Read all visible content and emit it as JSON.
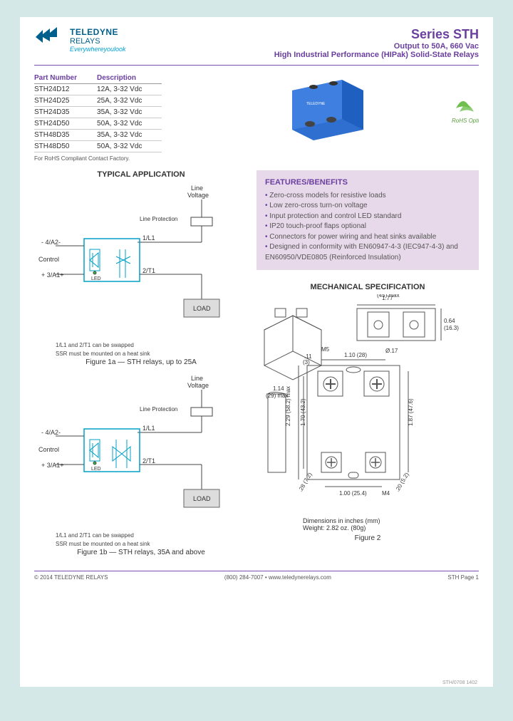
{
  "brand": {
    "name": "TELEDYNE",
    "sub": "RELAYS",
    "tagline": "Everywhereyoulook",
    "logo_color": "#005f8b"
  },
  "title": {
    "series": "Series STH",
    "line2": "Output to 50A, 660 Vac",
    "line3": "High Industrial Performance (HIPak) Solid-State Relays",
    "color": "#6a3fa0"
  },
  "part_table": {
    "headers": [
      "Part Number",
      "Description"
    ],
    "rows": [
      [
        "STH24D12",
        "12A, 3-32 Vdc"
      ],
      [
        "STH24D25",
        "25A, 3-32 Vdc"
      ],
      [
        "STH24D35",
        "35A, 3-32 Vdc"
      ],
      [
        "STH24D50",
        "50A, 3-32 Vdc"
      ],
      [
        "STH48D35",
        "35A, 3-32 Vdc"
      ],
      [
        "STH48D50",
        "50A, 3-32 Vdc"
      ]
    ],
    "footnote": "For RoHS Compliant Contact Factory."
  },
  "rohs_label": "RoHS Option",
  "product_image": {
    "body_color": "#2f6fd0",
    "screw_color": "#555",
    "label_text": "TELEDYNE"
  },
  "typical_app": {
    "heading": "TYPICAL APPLICATION",
    "circuit_a": {
      "caption": "Figure 1a — STH relays, up to 25A",
      "note1": "1/L1 and 2/T1 can be swapped",
      "note2": "SSR must be mounted on a heat sink",
      "labels": {
        "ctrl_minus": "- 4/A2-",
        "ctrl_plus": "+ 3/A1+",
        "ctrl": "Control",
        "l1": "1/L1",
        "t1": "2/T1",
        "line_v": "Line\nVoltage",
        "line_prot": "Line Protection",
        "load": "LOAD",
        "led": "LED"
      }
    },
    "circuit_b": {
      "caption": "Figure 1b — STH relays, 35A and above",
      "note1": "1/L1 and 2/T1 can be swapped",
      "note2": "SSR must be mounted on a heat sink"
    },
    "line_color": "#00a0c8",
    "load_color": "#666"
  },
  "features": {
    "title": "FEATURES/BENEFITS",
    "items": [
      "Zero-cross models for resistive loads",
      "Low zero-cross turn-on voltage",
      "Input protection and control LED standard",
      "IP20 touch-proof flaps optional",
      "Connectors for power wiring and heat sinks available",
      "Designed in conformity with EN60947-4-3 (IEC947-4-3) and EN60950/VDE0805 (Reinforced Insulation)"
    ],
    "bg": "#e8d9ea"
  },
  "mechanical": {
    "heading": "MECHANICAL SPECIFICATION",
    "dims": {
      "width": "1.77\n(45) max",
      "depth": "1.14\n(29) max",
      "height": "2.29 (58.2) max",
      "h2": "1.70 (43.2)",
      "h3": "1.87 (47.6)",
      "w2": "1.10 (28)",
      "w3": "1.00 (25.4)",
      "d1": ".11\n(3)",
      "d2": "0.64\n(16.3)",
      "d3": ".28 (7.2)",
      "d4": ".20 (5.2)",
      "m5": "M5",
      "m4": "M4",
      "o17": "Ø.17"
    },
    "note1": "Dimensions in inches (mm)",
    "note2": "Weight: 2.82 oz. (80g)",
    "caption": "Figure 2"
  },
  "footer": {
    "copyright": "© 2014 TELEDYNE RELAYS",
    "phone": "(800) 284-7007 • www.teledynerelays.com",
    "page": "STH Page 1",
    "doc": "STH/0708 1402"
  },
  "colors": {
    "page_bg": "#d4e8e8",
    "accent": "#6a3fa0",
    "brand_blue": "#005f8b",
    "circuit_blue": "#00a0c8"
  }
}
